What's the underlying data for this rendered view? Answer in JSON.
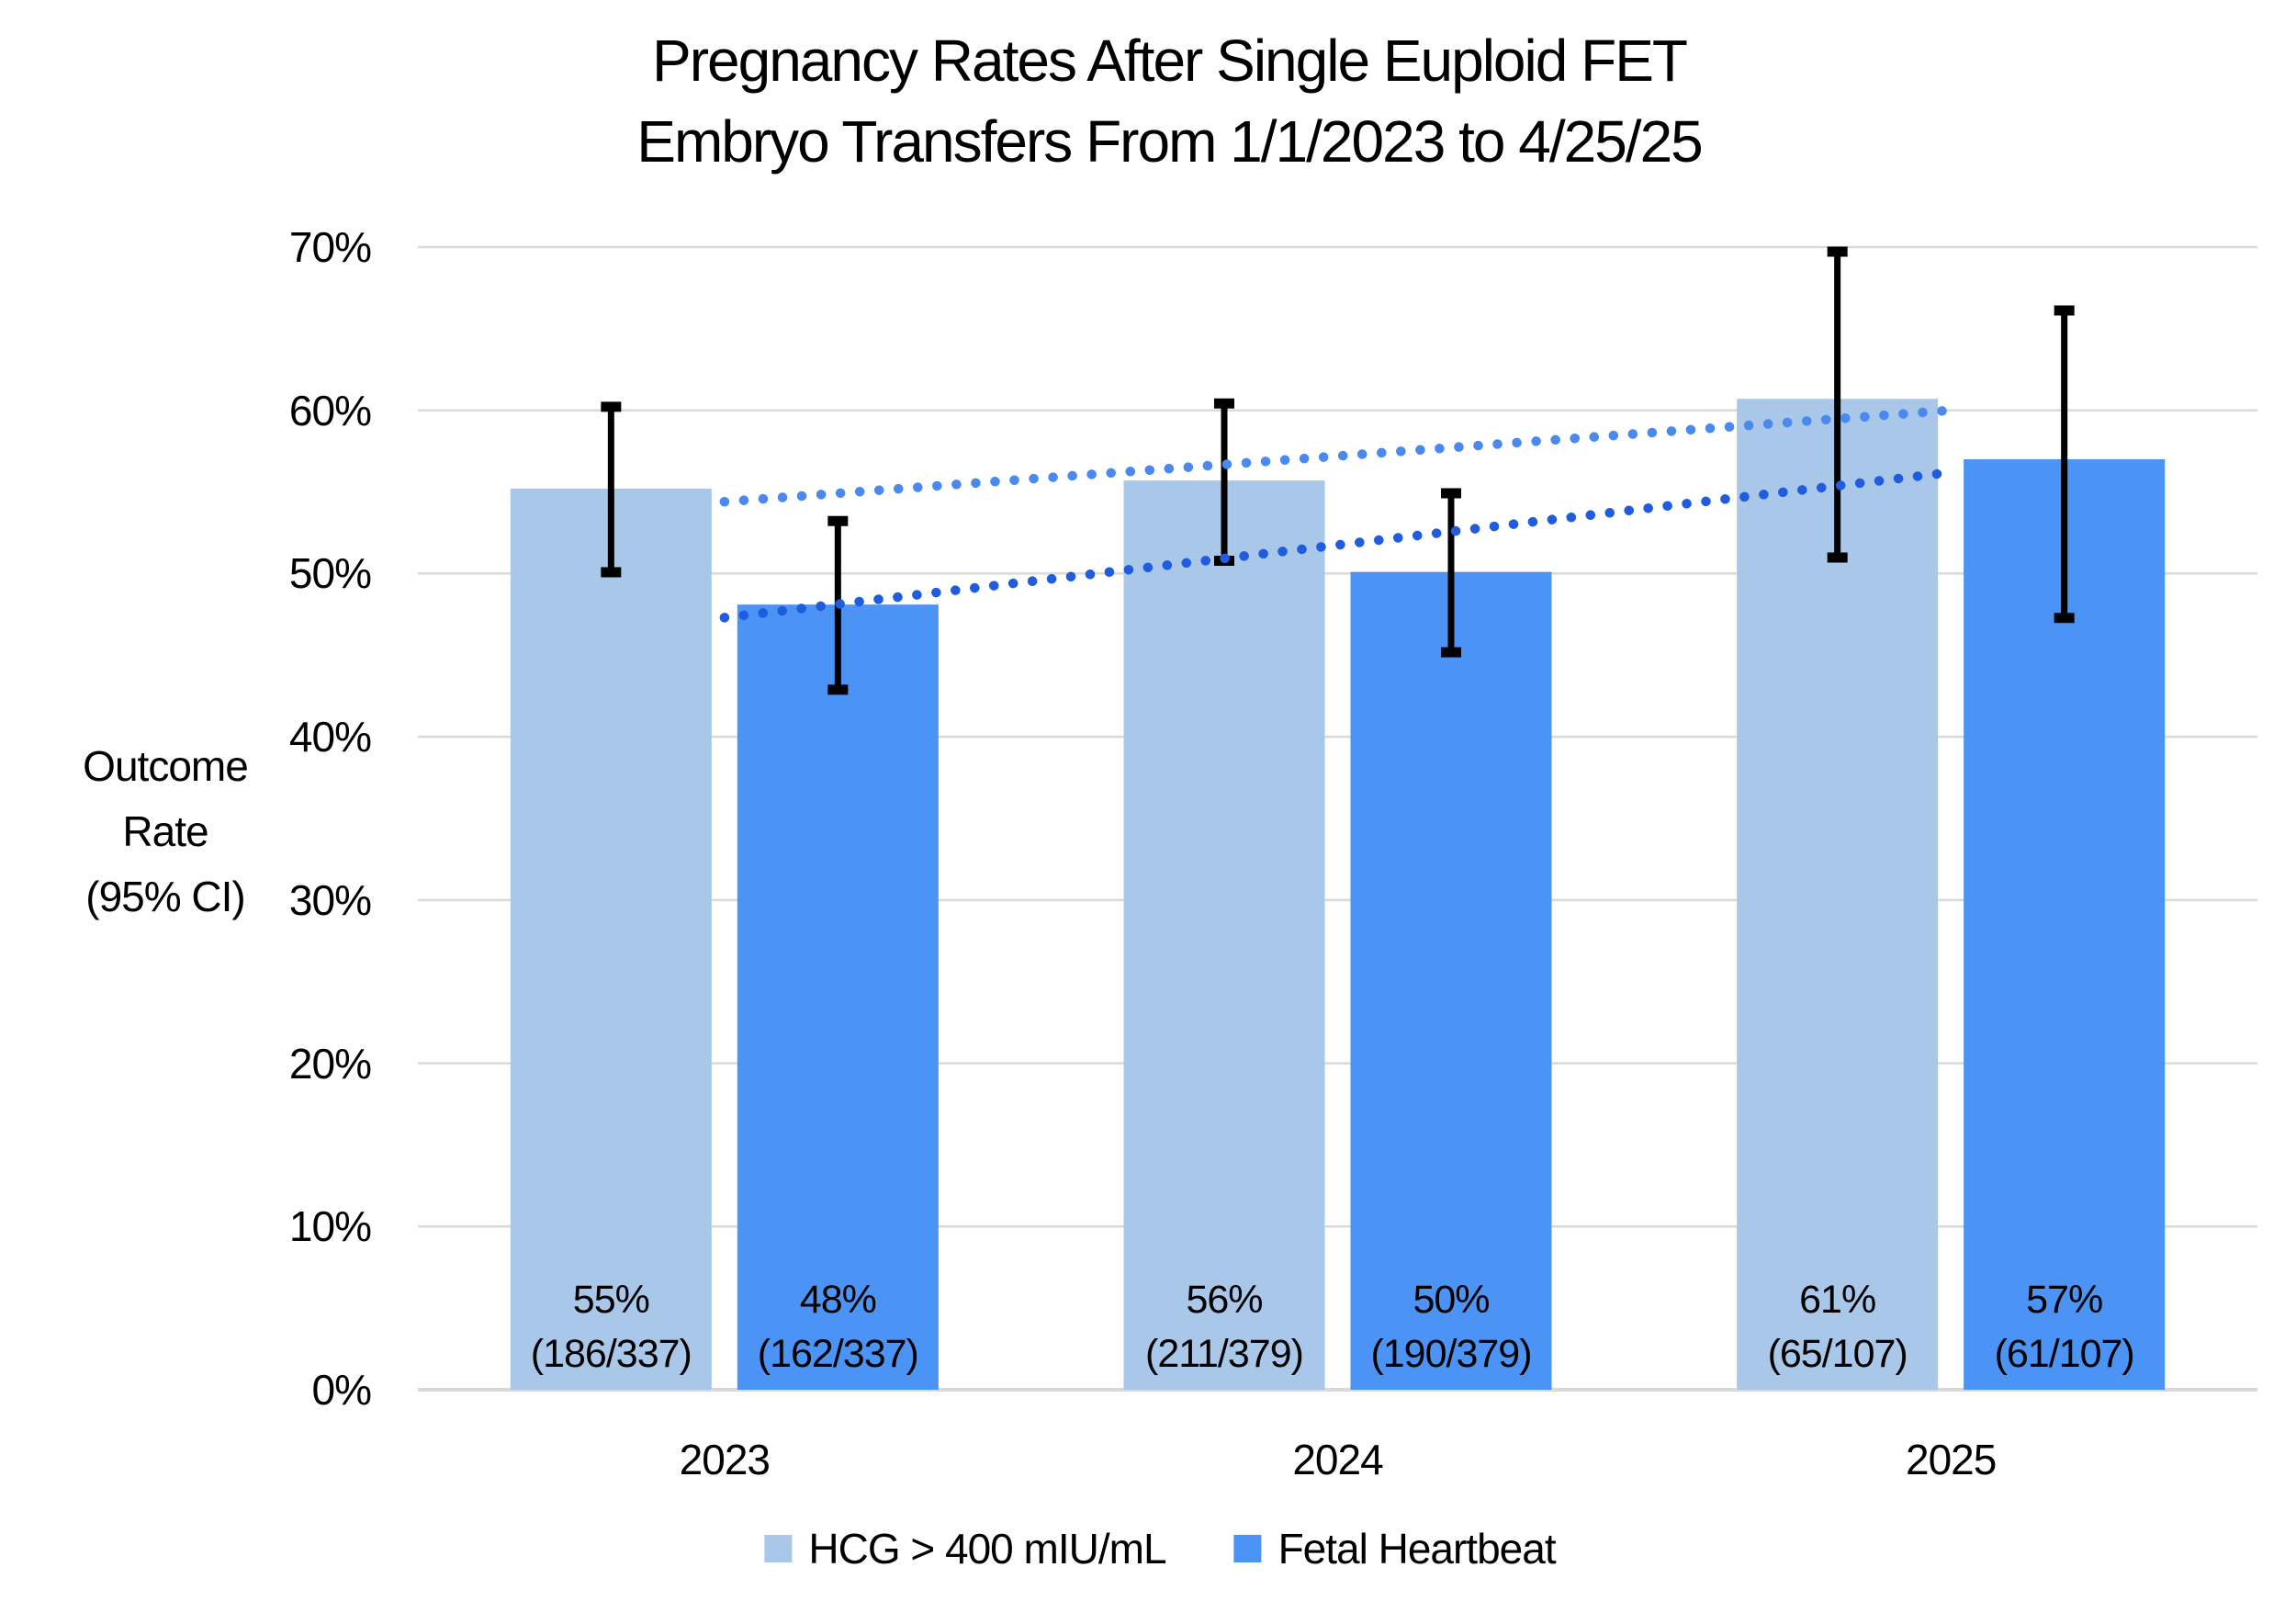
{
  "chart_data": {
    "type": "bar",
    "title_lines": [
      "Pregnancy Rates After Single Euploid FET",
      "Embryo Transfers From 1/1/2023 to 4/25/25"
    ],
    "ylabel_lines": [
      "Outcome",
      "Rate",
      "(95% CI)"
    ],
    "categories": [
      "2023",
      "2024",
      "2025"
    ],
    "yticks": [
      "0%",
      "10%",
      "20%",
      "30%",
      "40%",
      "50%",
      "60%",
      "70%"
    ],
    "ylim": [
      0,
      70
    ],
    "grid": true,
    "legend_position": "bottom",
    "gridline_color": "#D9D9D9",
    "error_bar_color": "#000000",
    "series": [
      {
        "name": "HCG > 400 mIU/mL",
        "color": "#A9C7E8",
        "values": [
          55.2,
          55.7,
          60.7
        ],
        "counts": [
          "186/337",
          "211/379",
          "65/107"
        ],
        "bar_labels": [
          [
            "55%",
            "(186/337)"
          ],
          [
            "56%",
            "(211/379)"
          ],
          [
            "61%",
            "(65/107)"
          ]
        ],
        "ci_low": [
          49.8,
          50.5,
          50.7
        ],
        "ci_high": [
          60.5,
          60.7,
          70.0
        ],
        "trendline": {
          "style": "dotted",
          "color": "#4A89F0",
          "start_pct": 54.4,
          "end_pct": 60.0
        }
      },
      {
        "name": "Fetal Heartbeat",
        "color": "#4B93F5",
        "values": [
          48.1,
          50.1,
          57.0
        ],
        "counts": [
          "162/337",
          "190/379",
          "61/107"
        ],
        "bar_labels": [
          [
            "48%",
            "(162/337)"
          ],
          [
            "50%",
            "(190/379)"
          ],
          [
            "57%",
            "(61/107)"
          ]
        ],
        "ci_low": [
          42.6,
          44.9,
          47.0
        ],
        "ci_high": [
          53.5,
          55.2,
          66.4
        ],
        "trendline": {
          "style": "dotted",
          "color": "#1F5CDE",
          "start_pct": 47.3,
          "end_pct": 56.2
        }
      }
    ]
  }
}
